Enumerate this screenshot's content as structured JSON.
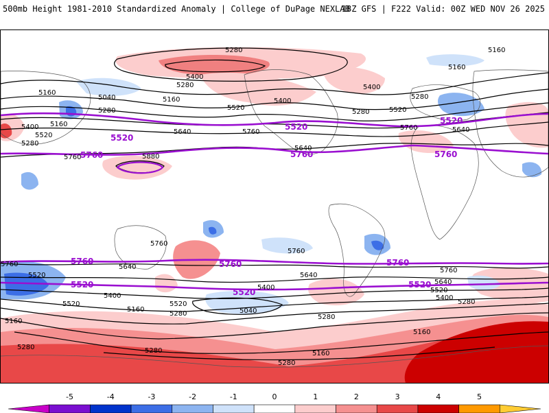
{
  "header": {
    "title_left": "500mb Height 1981-2010 Standardized Anomaly | College of DuPage NEXLAB",
    "title_right": "18Z GFS | F222 Valid: 00Z WED NOV 26 2025"
  },
  "map": {
    "contour_labels": {
      "c5280_top": "5280",
      "c5160_tr": "5160",
      "c5160_tr2": "5160",
      "c5400_a": "5400",
      "c5280_a": "5280",
      "c5160_a": "5160",
      "c5040_a": "5040",
      "c5160_b": "5160",
      "c5520_a": "5520",
      "c5400_b": "5400",
      "c5400_c": "5400",
      "c5280_b": "5280",
      "c5520_b": "5520",
      "c5280_c": "5280",
      "c5400_d": "5400",
      "c5520_c": "5520",
      "c5640_a": "5640",
      "c5760_a": "5760",
      "c5640_b": "5640",
      "c5760_b": "5760",
      "c5640_c": "5640",
      "c5280_d": "5280",
      "c5400_e": "5400",
      "c5520_d": "5520",
      "c5760_c": "5760",
      "c5880_a": "5880",
      "c5760_d": "5760",
      "c5760_e": "5760",
      "c5760_f": "5760",
      "c5640_d": "5640",
      "c5640_e": "5640",
      "c5400_f": "5400",
      "c5520_e": "5520",
      "c5520_f": "5520",
      "c5280_e": "5280",
      "c5040_b": "5040",
      "c5160_c": "5160",
      "c5280_f": "5280",
      "c5160_d": "5160",
      "c5280_g": "5280",
      "c5160_e": "5160",
      "c5280_h": "5280",
      "c5280_i": "5280",
      "c5400_g": "5400",
      "c5640_f": "5640",
      "c5520_g": "5520",
      "c5400_h": "5400",
      "c5280_j": "5280",
      "c5160_f": "5160",
      "c5280_k": "5280",
      "c5160_g": "5160",
      "c5520_h": "5520",
      "c5760_g": "5760"
    },
    "purple_labels": {
      "p5520_a": "5520",
      "p5520_b": "5520",
      "p5520_c": "5520",
      "p5760_a": "5760",
      "p5760_b": "5760",
      "p5760_c": "5760",
      "p5760_d": "5760",
      "p5760_e": "5760",
      "p5760_f": "5760",
      "p5520_d": "5520",
      "p5520_e": "5520",
      "p5520_f": "5520"
    }
  },
  "colorbar": {
    "ticks": [
      "-5",
      "-4",
      "-3",
      "-2",
      "-1",
      "0",
      "1",
      "2",
      "3",
      "4",
      "5"
    ],
    "colors": [
      "#c800c8",
      "#7a0fd0",
      "#0033cc",
      "#3c6ee6",
      "#8cb4f0",
      "#cfe2fa",
      "#ffffff",
      "#fccdcd",
      "#f59090",
      "#e84848",
      "#cc0000",
      "#ff9900",
      "#ffcc33"
    ],
    "purple_contour_color": "#9a0fd0"
  }
}
